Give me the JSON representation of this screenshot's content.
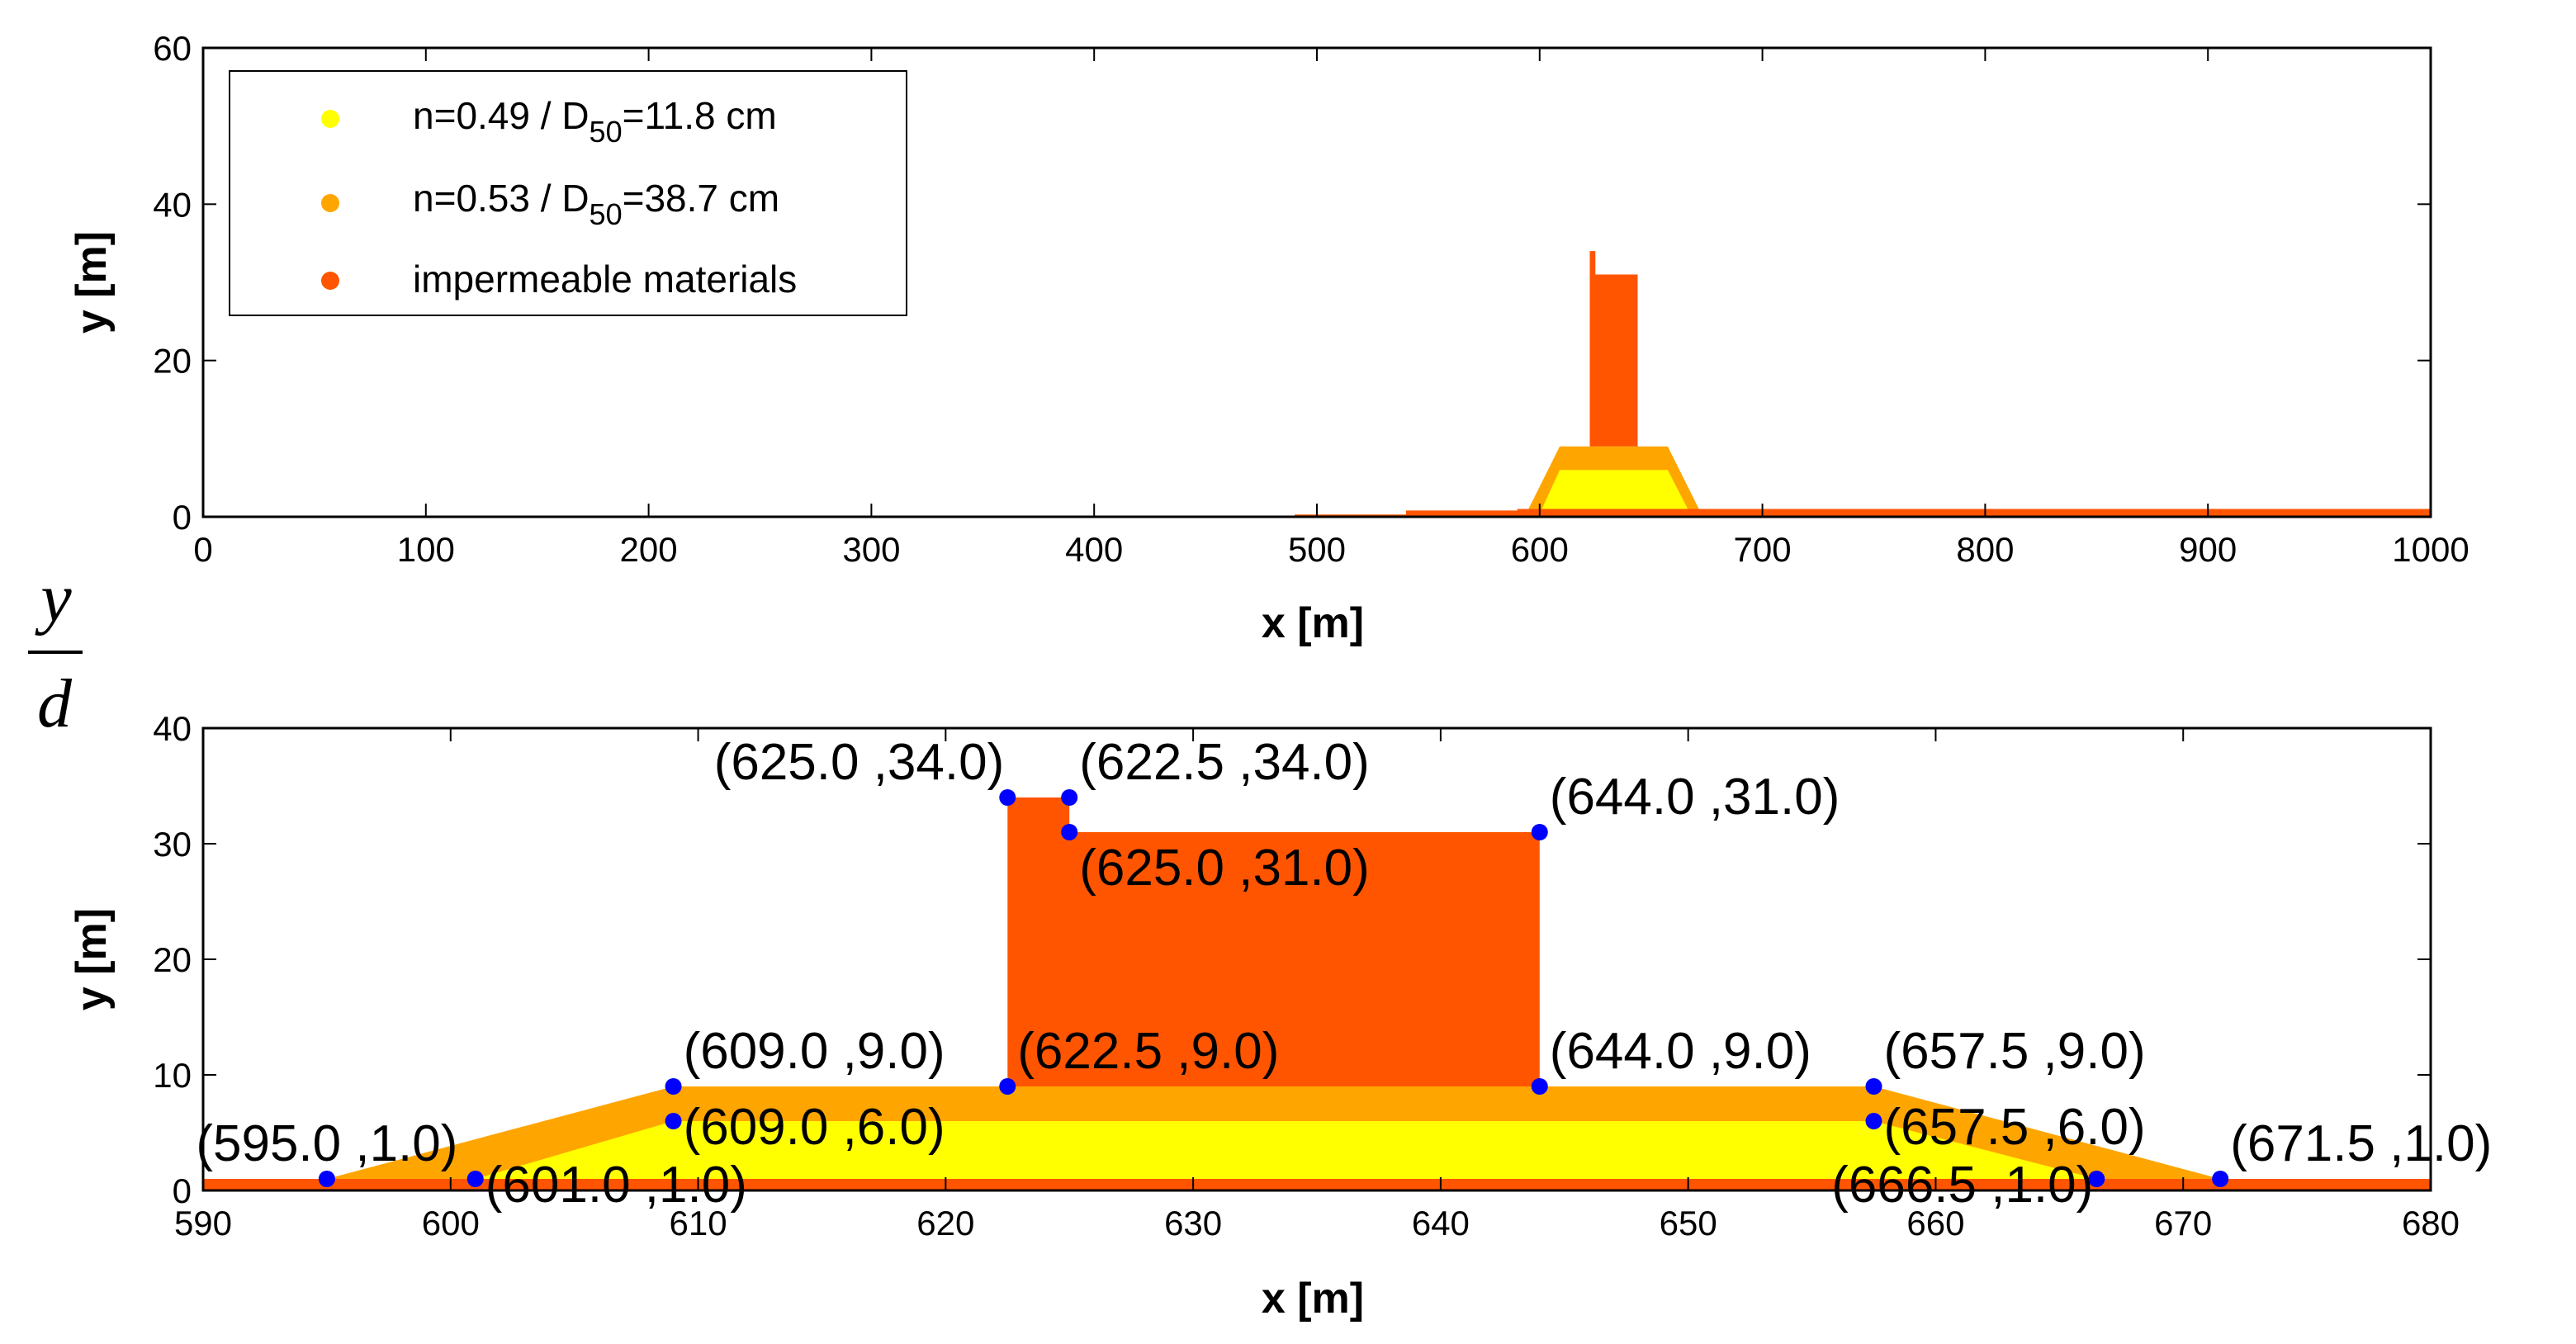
{
  "colors": {
    "layer_core": "#ffff00",
    "layer_filter": "#ffa500",
    "impermeable": "#ff5500",
    "point": "#0000ff"
  },
  "side_label": {
    "numerator": "y",
    "denominator": "d"
  },
  "legend": [
    {
      "text_before": "n=0.49 / D",
      "sub": "50",
      "text_after": "=11.8 cm",
      "color": "#ffff00"
    },
    {
      "text_before": "n=0.53 / D",
      "sub": "50",
      "text_after": "=38.7 cm",
      "color": "#ffa500"
    },
    {
      "text_before": "impermeable materials",
      "sub": "",
      "text_after": "",
      "color": "#ff5500"
    }
  ],
  "chart_data": [
    {
      "type": "area",
      "title": "",
      "xlabel": "x [m]",
      "ylabel": "y [m]",
      "xlim": [
        0,
        1000
      ],
      "ylim": [
        0,
        60
      ],
      "xticks": [
        0,
        100,
        200,
        300,
        400,
        500,
        600,
        700,
        800,
        900,
        1000
      ],
      "yticks": [
        0,
        20,
        40,
        60
      ],
      "regions": [
        {
          "name": "impermeable seabed",
          "material": "impermeable",
          "polygon": [
            [
              490,
              0
            ],
            [
              490,
              0.3
            ],
            [
              540,
              0.3
            ],
            [
              540,
              0.8
            ],
            [
              590,
              0.8
            ],
            [
              590,
              1
            ],
            [
              1000,
              1
            ],
            [
              1000,
              0
            ]
          ]
        },
        {
          "name": "filter layer",
          "material": "filter",
          "polygon": [
            [
              595,
              1
            ],
            [
              609,
              9
            ],
            [
              657.5,
              9
            ],
            [
              671.5,
              1
            ]
          ]
        },
        {
          "name": "core",
          "material": "core",
          "polygon": [
            [
              601,
              1
            ],
            [
              609,
              6
            ],
            [
              657.5,
              6
            ],
            [
              666.5,
              1
            ]
          ]
        },
        {
          "name": "caisson",
          "material": "impermeable",
          "polygon": [
            [
              622.5,
              9
            ],
            [
              622.5,
              34
            ],
            [
              625,
              34
            ],
            [
              625,
              31
            ],
            [
              644,
              31
            ],
            [
              644,
              9
            ]
          ]
        }
      ]
    },
    {
      "type": "area",
      "title": "",
      "xlabel": "x [m]",
      "ylabel": "y [m]",
      "xlim": [
        590,
        680
      ],
      "ylim": [
        0,
        40
      ],
      "xticks": [
        590,
        600,
        610,
        620,
        630,
        640,
        650,
        660,
        670,
        680
      ],
      "yticks": [
        0,
        10,
        20,
        30,
        40
      ],
      "regions": [
        {
          "name": "filter layer",
          "material": "filter",
          "polygon": [
            [
              590,
              1
            ],
            [
              595,
              1
            ],
            [
              609,
              9
            ],
            [
              657.5,
              9
            ],
            [
              671.5,
              1
            ],
            [
              680,
              1
            ],
            [
              680,
              0
            ],
            [
              590,
              0
            ]
          ]
        },
        {
          "name": "core",
          "material": "core",
          "polygon": [
            [
              601,
              1
            ],
            [
              609,
              6
            ],
            [
              657.5,
              6
            ],
            [
              666.5,
              1
            ]
          ]
        },
        {
          "name": "impermeable seabed",
          "material": "impermeable",
          "polygon": [
            [
              590,
              0
            ],
            [
              590,
              1
            ],
            [
              680,
              1
            ],
            [
              680,
              0
            ]
          ]
        },
        {
          "name": "caisson",
          "material": "impermeable",
          "polygon": [
            [
              622.5,
              9
            ],
            [
              622.5,
              34
            ],
            [
              625,
              34
            ],
            [
              625,
              31
            ],
            [
              644,
              31
            ],
            [
              644,
              9
            ]
          ]
        }
      ],
      "points": [
        {
          "x": 625.0,
          "y": 34.0,
          "label": "(625.0 ,34.0)",
          "at_x": 622.5,
          "at_y": 34.0,
          "anchor": "end",
          "dy": -1
        },
        {
          "x": 622.5,
          "y": 34.0,
          "label": "(622.5 ,34.0)",
          "at_x": 625.0,
          "at_y": 34.0,
          "anchor": "start",
          "dy": -1
        },
        {
          "x": 625.0,
          "y": 31.0,
          "label": "(625.0 ,31.0)",
          "at_x": 625.0,
          "at_y": 31.0,
          "anchor": "start",
          "dy": 1
        },
        {
          "x": 644.0,
          "y": 31.0,
          "label": "(644.0 ,31.0)",
          "at_x": 644.0,
          "at_y": 31.0,
          "anchor": "start",
          "dy": -1
        },
        {
          "x": 609.0,
          "y": 9.0,
          "label": "(609.0 ,9.0)",
          "at_x": 609.0,
          "at_y": 9.0,
          "anchor": "start",
          "dy": -1
        },
        {
          "x": 622.5,
          "y": 9.0,
          "label": "(622.5 ,9.0)",
          "at_x": 622.5,
          "at_y": 9.0,
          "anchor": "start",
          "dy": -1
        },
        {
          "x": 644.0,
          "y": 9.0,
          "label": "(644.0 ,9.0)",
          "at_x": 644.0,
          "at_y": 9.0,
          "anchor": "start",
          "dy": -1
        },
        {
          "x": 657.5,
          "y": 9.0,
          "label": "(657.5 ,9.0)",
          "at_x": 657.5,
          "at_y": 9.0,
          "anchor": "start",
          "dy": -1
        },
        {
          "x": 609.0,
          "y": 6.0,
          "label": "(609.0 ,6.0)",
          "at_x": 609.0,
          "at_y": 6.0,
          "anchor": "start",
          "dy": 0
        },
        {
          "x": 657.5,
          "y": 6.0,
          "label": "(657.5 ,6.0)",
          "at_x": 657.5,
          "at_y": 6.0,
          "anchor": "start",
          "dy": 0
        },
        {
          "x": 595.0,
          "y": 1.0,
          "label": "(595.0 ,1.0)",
          "at_x": 595.0,
          "at_y": 1.0,
          "anchor": "middle",
          "dy": -1
        },
        {
          "x": 601.0,
          "y": 1.0,
          "label": "(601.0 ,1.0)",
          "at_x": 601.0,
          "at_y": 1.0,
          "anchor": "start",
          "dy": 0
        },
        {
          "x": 666.5,
          "y": 1.0,
          "label": "(666.5 ,1.0)",
          "at_x": 666.5,
          "at_y": 1.0,
          "anchor": "end",
          "dy": 0
        },
        {
          "x": 671.5,
          "y": 1.0,
          "label": "(671.5 ,1.0)",
          "at_x": 671.5,
          "at_y": 1.0,
          "anchor": "start",
          "dy": -1
        }
      ]
    }
  ]
}
